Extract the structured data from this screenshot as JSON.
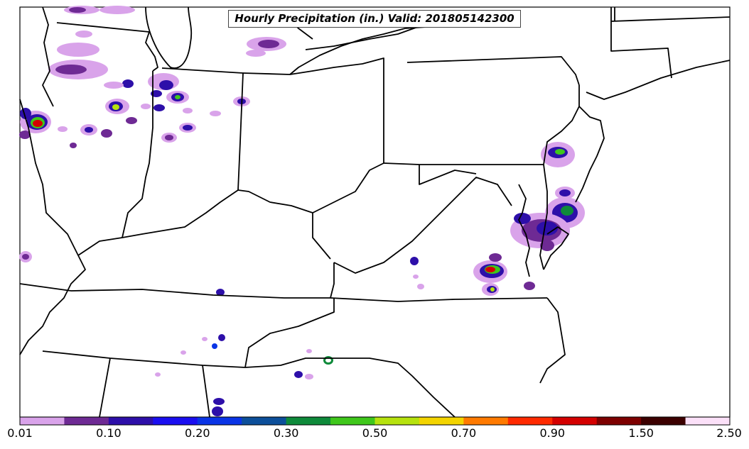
{
  "map": {
    "title": "Hourly Precipitation (in.) Valid: 201805142300"
  },
  "colorbar": {
    "colors": [
      "#d9a3ea",
      "#6e2a94",
      "#2d0fa9",
      "#1a0ef0",
      "#0a34e6",
      "#0c4f9a",
      "#0e8a3a",
      "#3fc71b",
      "#b6e20e",
      "#f3d400",
      "#ff7a00",
      "#ff2a00",
      "#d40000",
      "#7d0000",
      "#3c0000",
      "#fbe0f8"
    ],
    "labels": [
      "0.01",
      "0.10",
      "0.20",
      "0.30",
      "0.50",
      "0.70",
      "0.90",
      "1.50",
      "2.50"
    ]
  }
}
